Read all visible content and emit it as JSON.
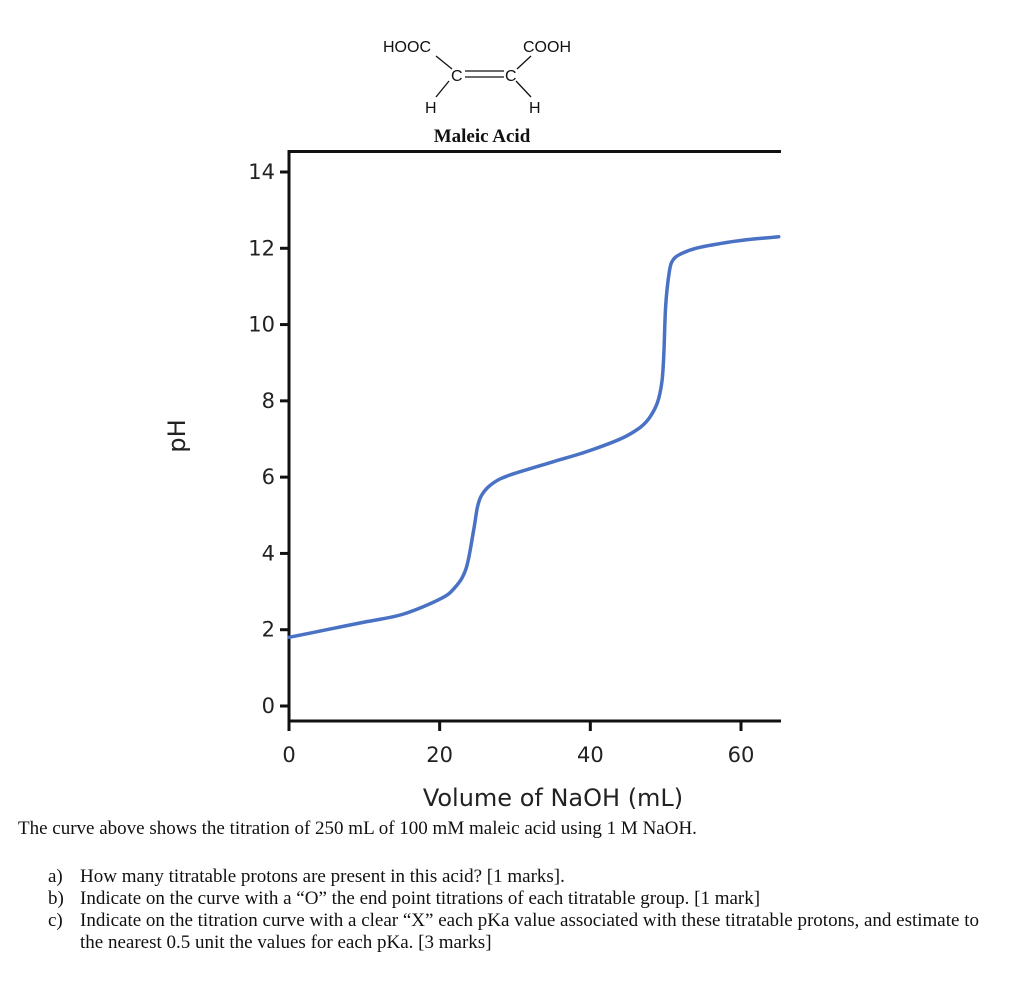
{
  "structure": {
    "left_group": "HOOC",
    "right_group": "COOH",
    "carbon_left": "C",
    "carbon_right": "C",
    "hydrogen_left": "H",
    "hydrogen_right": "H",
    "name": "Maleic Acid"
  },
  "chart_data": {
    "type": "line",
    "title": "",
    "xlabel": "Volume of NaOH (mL)",
    "ylabel": "pH",
    "xlim": [
      0,
      65
    ],
    "ylim": [
      0,
      14
    ],
    "x_ticks": [
      0,
      20,
      40,
      60
    ],
    "y_ticks": [
      0,
      2,
      4,
      6,
      8,
      10,
      12,
      14
    ],
    "grid": false,
    "series": [
      {
        "color": "#4a72c4",
        "x": [
          0,
          5,
          10,
          15,
          20,
          22,
          23.5,
          24.5,
          25,
          25.5,
          26.5,
          28,
          30,
          35,
          40,
          45,
          48,
          49.5,
          50,
          50.5,
          51,
          52,
          54,
          58,
          62,
          65
        ],
        "y": [
          1.8,
          2.0,
          2.2,
          2.4,
          2.8,
          3.1,
          3.6,
          4.6,
          5.2,
          5.5,
          5.75,
          5.95,
          6.1,
          6.4,
          6.7,
          7.1,
          7.6,
          8.5,
          10.5,
          11.4,
          11.7,
          11.85,
          12.0,
          12.15,
          12.25,
          12.3
        ]
      }
    ]
  },
  "caption": "The curve above shows the titration of 250 mL of 100 mM maleic acid using 1 M NaOH.",
  "questions": [
    {
      "label": "a)",
      "text": "How many titratable protons are present in this acid? [1 marks]."
    },
    {
      "label": "b)",
      "text": "Indicate on the curve with a “O” the end point titrations of each titratable group. [1 mark]"
    },
    {
      "label": "c)",
      "text": "Indicate on the titration curve with a clear “X” each pKa value associated with these titratable protons, and estimate to the nearest 0.5 unit the values for each pKa. [3 marks]"
    }
  ]
}
